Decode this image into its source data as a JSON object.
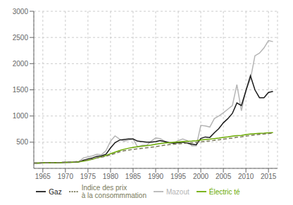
{
  "chart_data": {
    "type": "line",
    "x": [
      1963,
      1964,
      1965,
      1966,
      1967,
      1968,
      1969,
      1970,
      1971,
      1972,
      1973,
      1974,
      1975,
      1976,
      1977,
      1978,
      1979,
      1980,
      1981,
      1982,
      1983,
      1984,
      1985,
      1986,
      1987,
      1988,
      1989,
      1990,
      1991,
      1992,
      1993,
      1994,
      1995,
      1996,
      1997,
      1998,
      1999,
      2000,
      2001,
      2002,
      2003,
      2004,
      2005,
      2006,
      2007,
      2008,
      2009,
      2010,
      2011,
      2012,
      2013,
      2014,
      2015,
      2016
    ],
    "series": [
      {
        "name": "Mazout",
        "color": "#b5b5b5",
        "values": [
          100,
          102,
          104,
          106,
          108,
          110,
          112,
          115,
          118,
          122,
          130,
          200,
          220,
          240,
          270,
          260,
          340,
          520,
          620,
          560,
          520,
          540,
          560,
          410,
          440,
          440,
          520,
          580,
          570,
          520,
          490,
          490,
          530,
          560,
          530,
          430,
          430,
          820,
          810,
          790,
          950,
          1000,
          1060,
          1130,
          1200,
          1600,
          1100,
          1500,
          1700,
          2150,
          2200,
          2300,
          2440,
          2420
        ]
      },
      {
        "name": "Gaz",
        "color": "#1a1a1a",
        "values": [
          100,
          102,
          103,
          105,
          107,
          109,
          111,
          113,
          116,
          119,
          124,
          155,
          180,
          200,
          230,
          240,
          270,
          390,
          490,
          540,
          550,
          560,
          560,
          520,
          510,
          500,
          500,
          510,
          530,
          510,
          490,
          480,
          490,
          500,
          480,
          460,
          450,
          570,
          600,
          590,
          680,
          760,
          870,
          950,
          1050,
          1250,
          1200,
          1480,
          1770,
          1500,
          1350,
          1350,
          1450,
          1470
        ]
      },
      {
        "name": "Électric té",
        "color": "#6aaa00",
        "values": [
          100,
          102,
          103,
          104,
          106,
          108,
          110,
          113,
          116,
          120,
          125,
          138,
          155,
          175,
          200,
          220,
          245,
          280,
          310,
          340,
          365,
          385,
          400,
          415,
          425,
          435,
          445,
          460,
          475,
          485,
          492,
          498,
          505,
          512,
          518,
          522,
          528,
          540,
          550,
          558,
          570,
          580,
          592,
          602,
          614,
          625,
          630,
          645,
          655,
          662,
          668,
          672,
          678,
          682
        ]
      },
      {
        "name": "Indice des prix\nà la consommmation",
        "color": "#7a7a5a",
        "line_style": "dashed",
        "values": [
          100,
          102,
          103,
          105,
          107,
          110,
          113,
          117,
          121,
          126,
          133,
          148,
          165,
          182,
          200,
          215,
          232,
          258,
          285,
          315,
          335,
          350,
          362,
          373,
          383,
          393,
          403,
          415,
          430,
          443,
          453,
          460,
          468,
          477,
          483,
          488,
          494,
          505,
          516,
          524,
          535,
          546,
          558,
          568,
          580,
          594,
          601,
          614,
          628,
          638,
          648,
          656,
          665,
          672
        ]
      }
    ],
    "xlim": [
      1963,
      2017
    ],
    "xticks": [
      1965,
      1970,
      1975,
      1980,
      1985,
      1990,
      1995,
      2000,
      2005,
      2010,
      2015
    ],
    "ylim": [
      0,
      3000
    ],
    "yticks": [
      500,
      1000,
      1500,
      2000,
      2500,
      3000
    ],
    "grid": true,
    "legend": "bottom"
  }
}
